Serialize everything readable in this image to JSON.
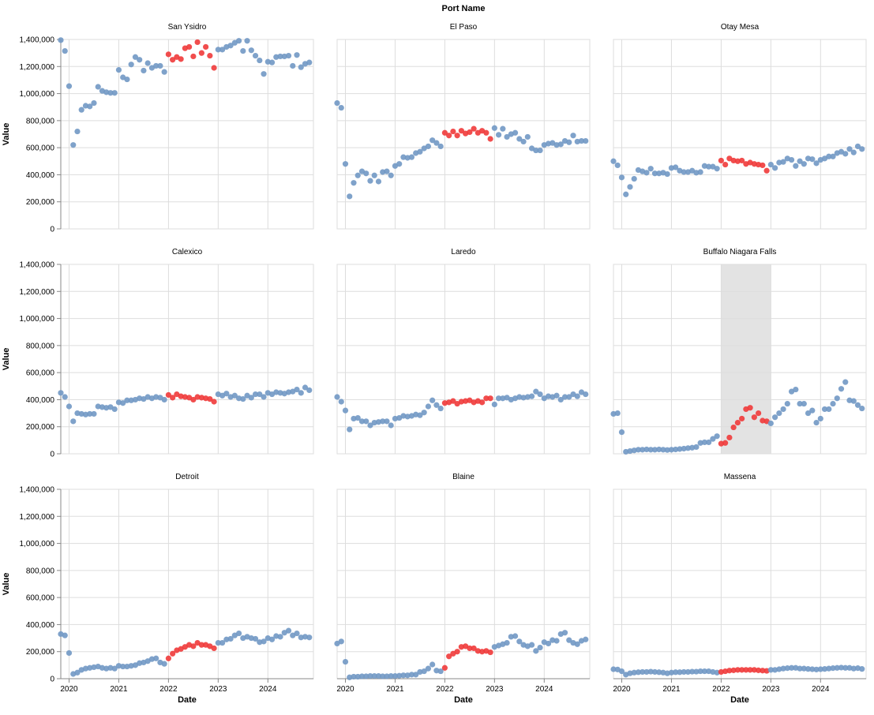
{
  "chart_data": {
    "type": "scatter",
    "facet_header": "Port Name",
    "xlabel": "Date",
    "ylabel": "Value",
    "x_ticks": [
      "2020",
      "2021",
      "2022",
      "2023",
      "2024"
    ],
    "y_ticks": [
      "0",
      "200,000",
      "400,000",
      "600,000",
      "800,000",
      "1,000,000",
      "1,200,000",
      "1,400,000"
    ],
    "ylim": [
      0,
      1400000
    ],
    "xlim": [
      "2019-11-01",
      "2024-12-01"
    ],
    "grid": true,
    "colors": {
      "normal": "#7198c4",
      "highlight": "#f03a3a",
      "band": "#e3e3e3",
      "grid": "#dddddd",
      "axis": "#888888"
    },
    "highlight_range": [
      "2022-01",
      "2022-12"
    ],
    "shaded_panel": "Buffalo Niagara Falls",
    "months": [
      "2019-11",
      "2019-12",
      "2020-01",
      "2020-02",
      "2020-03",
      "2020-04",
      "2020-05",
      "2020-06",
      "2020-07",
      "2020-08",
      "2020-09",
      "2020-10",
      "2020-11",
      "2020-12",
      "2021-01",
      "2021-02",
      "2021-03",
      "2021-04",
      "2021-05",
      "2021-06",
      "2021-07",
      "2021-08",
      "2021-09",
      "2021-10",
      "2021-11",
      "2021-12",
      "2022-01",
      "2022-02",
      "2022-03",
      "2022-04",
      "2022-05",
      "2022-06",
      "2022-07",
      "2022-08",
      "2022-09",
      "2022-10",
      "2022-11",
      "2022-12",
      "2023-01",
      "2023-02",
      "2023-03",
      "2023-04",
      "2023-05",
      "2023-06",
      "2023-07",
      "2023-08",
      "2023-09",
      "2023-10",
      "2023-11",
      "2023-12",
      "2024-01",
      "2024-02",
      "2024-03",
      "2024-04",
      "2024-05",
      "2024-06",
      "2024-07",
      "2024-08",
      "2024-09",
      "2024-10",
      "2024-11"
    ],
    "panels": [
      {
        "name": "San Ysidro",
        "values": [
          1395000,
          1315000,
          1055000,
          620000,
          720000,
          880000,
          910000,
          905000,
          930000,
          1050000,
          1020000,
          1010000,
          1005000,
          1005000,
          1175000,
          1120000,
          1105000,
          1215000,
          1270000,
          1250000,
          1170000,
          1225000,
          1190000,
          1205000,
          1205000,
          1160000,
          1290000,
          1250000,
          1270000,
          1255000,
          1335000,
          1345000,
          1275000,
          1380000,
          1300000,
          1345000,
          1280000,
          1190000,
          1325000,
          1325000,
          1345000,
          1355000,
          1375000,
          1390000,
          1315000,
          1390000,
          1320000,
          1280000,
          1245000,
          1145000,
          1235000,
          1230000,
          1270000,
          1275000,
          1275000,
          1280000,
          1205000,
          1285000,
          1195000,
          1220000,
          1230000
        ]
      },
      {
        "name": "El Paso",
        "values": [
          930000,
          895000,
          480000,
          240000,
          340000,
          395000,
          425000,
          410000,
          355000,
          395000,
          350000,
          420000,
          425000,
          395000,
          465000,
          480000,
          530000,
          525000,
          530000,
          560000,
          570000,
          595000,
          610000,
          655000,
          635000,
          610000,
          710000,
          690000,
          720000,
          690000,
          725000,
          705000,
          715000,
          740000,
          710000,
          725000,
          710000,
          665000,
          745000,
          695000,
          740000,
          680000,
          700000,
          710000,
          665000,
          645000,
          680000,
          595000,
          580000,
          580000,
          620000,
          630000,
          635000,
          620000,
          625000,
          650000,
          640000,
          690000,
          645000,
          650000,
          650000
        ]
      },
      {
        "name": "Otay Mesa",
        "values": [
          500000,
          470000,
          380000,
          255000,
          310000,
          370000,
          435000,
          425000,
          415000,
          445000,
          410000,
          410000,
          415000,
          405000,
          450000,
          455000,
          430000,
          420000,
          420000,
          430000,
          415000,
          420000,
          465000,
          460000,
          460000,
          445000,
          505000,
          475000,
          520000,
          505000,
          500000,
          505000,
          480000,
          490000,
          480000,
          475000,
          470000,
          430000,
          475000,
          450000,
          490000,
          495000,
          520000,
          510000,
          465000,
          500000,
          480000,
          520000,
          515000,
          485000,
          510000,
          520000,
          535000,
          535000,
          560000,
          570000,
          555000,
          590000,
          565000,
          610000,
          590000
        ]
      },
      {
        "name": "Calexico",
        "values": [
          450000,
          420000,
          350000,
          240000,
          300000,
          295000,
          290000,
          295000,
          295000,
          350000,
          345000,
          340000,
          345000,
          330000,
          380000,
          375000,
          395000,
          395000,
          400000,
          410000,
          405000,
          420000,
          410000,
          420000,
          415000,
          400000,
          435000,
          415000,
          440000,
          425000,
          420000,
          415000,
          400000,
          420000,
          415000,
          410000,
          405000,
          385000,
          440000,
          430000,
          445000,
          420000,
          430000,
          410000,
          405000,
          430000,
          415000,
          440000,
          440000,
          420000,
          450000,
          440000,
          455000,
          450000,
          445000,
          455000,
          460000,
          475000,
          450000,
          490000,
          470000
        ]
      },
      {
        "name": "Laredo",
        "values": [
          420000,
          385000,
          320000,
          180000,
          260000,
          265000,
          240000,
          240000,
          210000,
          230000,
          235000,
          240000,
          240000,
          210000,
          260000,
          265000,
          280000,
          275000,
          280000,
          290000,
          285000,
          305000,
          350000,
          395000,
          360000,
          335000,
          375000,
          380000,
          390000,
          370000,
          385000,
          390000,
          395000,
          380000,
          390000,
          380000,
          410000,
          410000,
          365000,
          410000,
          410000,
          415000,
          400000,
          410000,
          420000,
          415000,
          420000,
          425000,
          460000,
          440000,
          410000,
          425000,
          420000,
          430000,
          400000,
          420000,
          420000,
          440000,
          425000,
          455000,
          440000
        ]
      },
      {
        "name": "Buffalo Niagara Falls",
        "values": [
          295000,
          300000,
          160000,
          15000,
          20000,
          25000,
          30000,
          30000,
          32000,
          30000,
          30000,
          32000,
          30000,
          28000,
          30000,
          32000,
          35000,
          38000,
          42000,
          45000,
          50000,
          80000,
          85000,
          85000,
          110000,
          130000,
          75000,
          80000,
          120000,
          195000,
          230000,
          260000,
          330000,
          340000,
          270000,
          300000,
          245000,
          240000,
          225000,
          270000,
          300000,
          330000,
          370000,
          460000,
          475000,
          370000,
          370000,
          300000,
          320000,
          230000,
          260000,
          330000,
          330000,
          370000,
          410000,
          480000,
          530000,
          395000,
          390000,
          360000,
          335000
        ]
      },
      {
        "name": "Detroit",
        "values": [
          330000,
          320000,
          190000,
          35000,
          45000,
          65000,
          75000,
          80000,
          85000,
          90000,
          80000,
          75000,
          80000,
          75000,
          95000,
          90000,
          90000,
          95000,
          100000,
          115000,
          120000,
          130000,
          145000,
          150000,
          120000,
          110000,
          150000,
          185000,
          210000,
          220000,
          235000,
          250000,
          240000,
          265000,
          250000,
          250000,
          240000,
          225000,
          265000,
          265000,
          290000,
          295000,
          320000,
          335000,
          300000,
          310000,
          300000,
          295000,
          270000,
          275000,
          300000,
          290000,
          315000,
          310000,
          340000,
          355000,
          320000,
          335000,
          305000,
          310000,
          305000
        ]
      },
      {
        "name": "Blaine",
        "values": [
          260000,
          275000,
          125000,
          10000,
          15000,
          15000,
          18000,
          18000,
          20000,
          20000,
          20000,
          18000,
          18000,
          20000,
          20000,
          22000,
          25000,
          25000,
          30000,
          30000,
          50000,
          55000,
          75000,
          105000,
          60000,
          55000,
          80000,
          165000,
          185000,
          200000,
          235000,
          240000,
          225000,
          225000,
          205000,
          200000,
          205000,
          195000,
          235000,
          245000,
          255000,
          265000,
          310000,
          315000,
          275000,
          250000,
          240000,
          250000,
          205000,
          230000,
          270000,
          260000,
          285000,
          280000,
          330000,
          340000,
          285000,
          265000,
          255000,
          280000,
          290000
        ]
      },
      {
        "name": "Massena",
        "values": [
          70000,
          68000,
          55000,
          30000,
          40000,
          45000,
          48000,
          50000,
          50000,
          52000,
          50000,
          48000,
          45000,
          40000,
          45000,
          48000,
          48000,
          50000,
          50000,
          52000,
          52000,
          55000,
          55000,
          55000,
          50000,
          45000,
          50000,
          55000,
          60000,
          62000,
          65000,
          65000,
          65000,
          65000,
          65000,
          62000,
          60000,
          58000,
          65000,
          65000,
          70000,
          75000,
          78000,
          80000,
          80000,
          75000,
          75000,
          72000,
          70000,
          68000,
          70000,
          72000,
          75000,
          78000,
          80000,
          82000,
          80000,
          80000,
          75000,
          78000,
          72000
        ]
      }
    ]
  }
}
